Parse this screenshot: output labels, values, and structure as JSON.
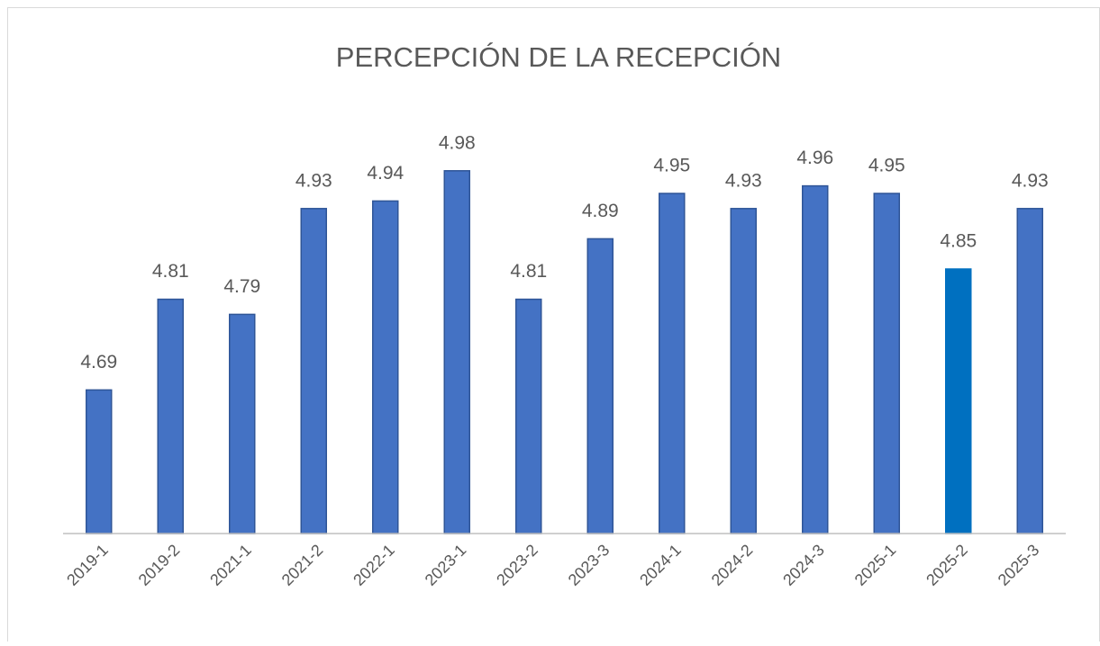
{
  "chart_data": {
    "type": "bar",
    "title": "PERCEPCIÓN DE LA RECEPCIÓN",
    "categories": [
      "2019-1",
      "2019-2",
      "2021-1",
      "2021-2",
      "2022-1",
      "2023-1",
      "2023-2",
      "2023-3",
      "2024-1",
      "2024-2",
      "2024-3",
      "2025-1",
      "2025-2",
      "2025-3"
    ],
    "values": [
      4.69,
      4.81,
      4.79,
      4.93,
      4.94,
      4.98,
      4.81,
      4.89,
      4.95,
      4.93,
      4.96,
      4.95,
      4.85,
      4.93
    ],
    "colors": [
      "#4472c4",
      "#4472c4",
      "#4472c4",
      "#4472c4",
      "#4472c4",
      "#4472c4",
      "#4472c4",
      "#4472c4",
      "#4472c4",
      "#4472c4",
      "#4472c4",
      "#4472c4",
      "#0070c0",
      "#4472c4"
    ],
    "ylim": [
      4.5,
      5.0
    ]
  }
}
